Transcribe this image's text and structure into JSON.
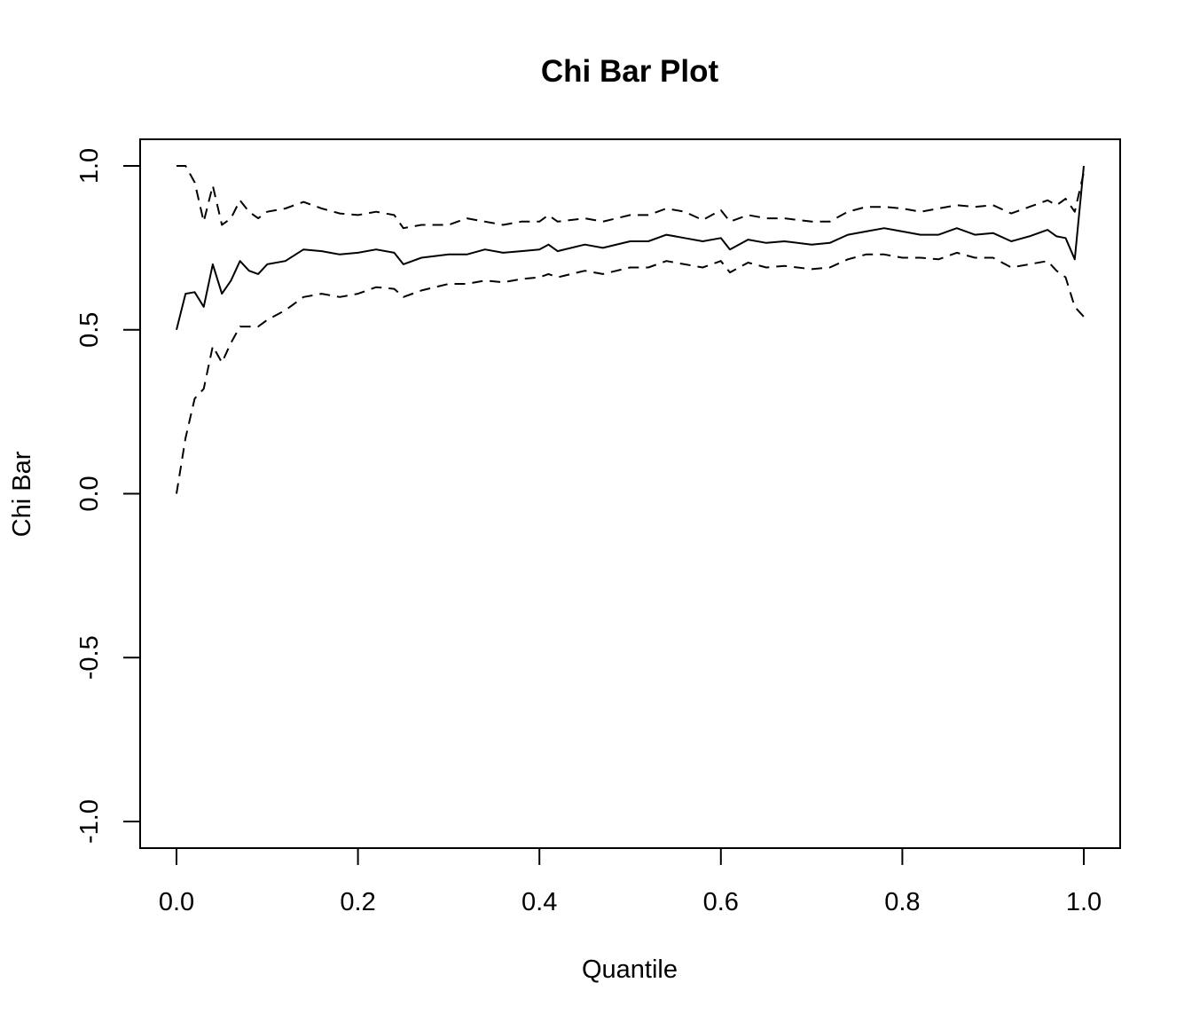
{
  "chart_data": {
    "type": "line",
    "title": "Chi Bar Plot",
    "xlabel": "Quantile",
    "ylabel": "Chi Bar",
    "xlim": [
      0,
      1
    ],
    "ylim": [
      -1,
      1
    ],
    "x_ticks": [
      "0.0",
      "0.2",
      "0.4",
      "0.6",
      "0.8",
      "1.0"
    ],
    "y_ticks": [
      "-1.0",
      "-0.5",
      "0.0",
      "0.5",
      "1.0"
    ],
    "x_tick_values": [
      0,
      0.2,
      0.4,
      0.6,
      0.8,
      1.0
    ],
    "y_tick_values": [
      -1,
      -0.5,
      0,
      0.5,
      1.0
    ],
    "grid": false,
    "legend": "none",
    "x": [
      0,
      0.01,
      0.02,
      0.03,
      0.04,
      0.05,
      0.06,
      0.07,
      0.08,
      0.09,
      0.1,
      0.12,
      0.14,
      0.16,
      0.18,
      0.2,
      0.22,
      0.24,
      0.25,
      0.27,
      0.3,
      0.32,
      0.34,
      0.36,
      0.38,
      0.4,
      0.41,
      0.42,
      0.45,
      0.47,
      0.5,
      0.52,
      0.54,
      0.56,
      0.58,
      0.6,
      0.61,
      0.63,
      0.65,
      0.67,
      0.7,
      0.72,
      0.74,
      0.76,
      0.78,
      0.8,
      0.82,
      0.84,
      0.86,
      0.88,
      0.9,
      0.92,
      0.94,
      0.96,
      0.97,
      0.98,
      0.99,
      1.0
    ],
    "series": [
      {
        "style": "solid",
        "values": [
          0.5,
          0.61,
          0.615,
          0.57,
          0.7,
          0.61,
          0.65,
          0.71,
          0.68,
          0.67,
          0.7,
          0.71,
          0.745,
          0.74,
          0.73,
          0.735,
          0.745,
          0.735,
          0.7,
          0.72,
          0.73,
          0.73,
          0.745,
          0.735,
          0.74,
          0.745,
          0.76,
          0.74,
          0.76,
          0.75,
          0.77,
          0.77,
          0.79,
          0.78,
          0.77,
          0.78,
          0.745,
          0.775,
          0.765,
          0.77,
          0.76,
          0.765,
          0.79,
          0.8,
          0.81,
          0.8,
          0.79,
          0.79,
          0.81,
          0.79,
          0.795,
          0.77,
          0.785,
          0.805,
          0.785,
          0.78,
          0.715,
          1.0
        ]
      },
      {
        "style": "dashed",
        "values": [
          1.0,
          1.0,
          0.95,
          0.83,
          0.94,
          0.82,
          0.84,
          0.895,
          0.86,
          0.84,
          0.86,
          0.87,
          0.89,
          0.87,
          0.855,
          0.85,
          0.86,
          0.85,
          0.81,
          0.82,
          0.82,
          0.84,
          0.83,
          0.82,
          0.83,
          0.83,
          0.85,
          0.83,
          0.84,
          0.83,
          0.85,
          0.85,
          0.87,
          0.86,
          0.835,
          0.865,
          0.83,
          0.85,
          0.84,
          0.84,
          0.83,
          0.83,
          0.86,
          0.875,
          0.875,
          0.87,
          0.86,
          0.87,
          0.88,
          0.875,
          0.88,
          0.855,
          0.875,
          0.895,
          0.88,
          0.9,
          0.86,
          0.98
        ]
      },
      {
        "style": "dashed",
        "values": [
          0.0,
          0.17,
          0.29,
          0.32,
          0.45,
          0.4,
          0.46,
          0.51,
          0.51,
          0.51,
          0.53,
          0.56,
          0.6,
          0.61,
          0.6,
          0.61,
          0.63,
          0.625,
          0.6,
          0.62,
          0.64,
          0.64,
          0.65,
          0.645,
          0.655,
          0.66,
          0.67,
          0.66,
          0.68,
          0.67,
          0.69,
          0.69,
          0.71,
          0.7,
          0.69,
          0.71,
          0.675,
          0.705,
          0.69,
          0.695,
          0.685,
          0.69,
          0.715,
          0.73,
          0.73,
          0.72,
          0.72,
          0.715,
          0.735,
          0.72,
          0.72,
          0.69,
          0.7,
          0.71,
          0.68,
          0.66,
          0.57,
          0.54
        ]
      }
    ]
  }
}
